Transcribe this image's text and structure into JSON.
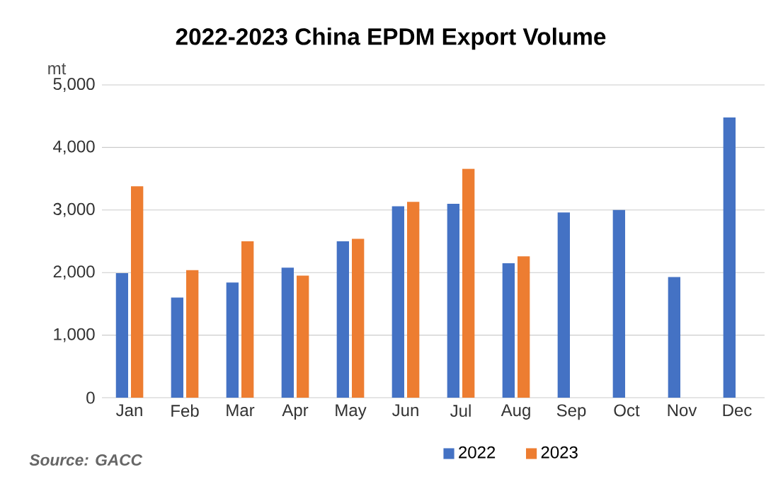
{
  "chart_data": {
    "type": "bar",
    "title": "2022-2023  China EPDM Export Volume",
    "ylabel": "mt",
    "categories": [
      "Jan",
      "Feb",
      "Mar",
      "Apr",
      "May",
      "Jun",
      "Jul",
      "Aug",
      "Sep",
      "Oct",
      "Nov",
      "Dec"
    ],
    "series": [
      {
        "name": "2022",
        "color": "#4472c4",
        "values": [
          1990,
          1600,
          1840,
          2080,
          2500,
          3060,
          3100,
          2150,
          2960,
          3000,
          1930,
          4480
        ]
      },
      {
        "name": "2023",
        "color": "#ed7d31",
        "values": [
          3380,
          2040,
          2500,
          1950,
          2540,
          3130,
          3660,
          2260,
          null,
          null,
          null,
          null
        ]
      }
    ],
    "ylim": [
      0,
      5000
    ],
    "yticks": [
      0,
      {
        "value": 1000,
        "label": "1,000"
      },
      {
        "value": 2000,
        "label": "2,000"
      },
      {
        "value": 3000,
        "label": "3,000"
      },
      {
        "value": 4000,
        "label": "4,000"
      },
      {
        "value": 5000,
        "label": "5,000"
      }
    ],
    "grid": "y",
    "legend": "bottom",
    "annotations": [
      "Source: GACC"
    ]
  }
}
